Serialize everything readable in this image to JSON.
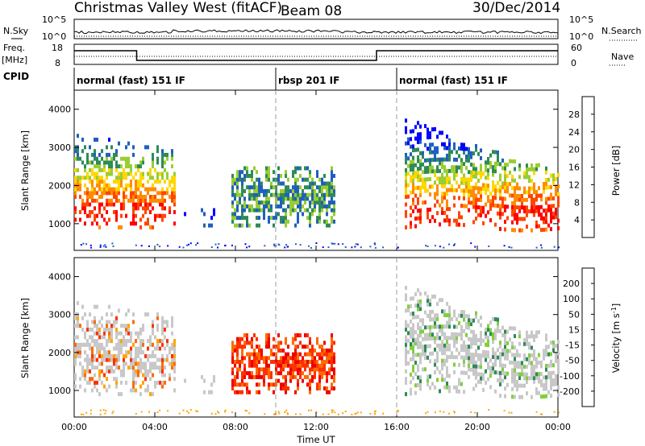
{
  "header": {
    "station": "Christmas Valley West (fitACF)",
    "beam": "Beam 08",
    "date": "30/Dec/2014"
  },
  "top_panels": {
    "nsky_label": "N.Sky",
    "nsky_scale_top": "10^5",
    "nsky_scale_bottom": "10^0",
    "nsky_right_top": "10^5",
    "nsky_right_bottom": "10^0",
    "nsearch_label": "N.Search",
    "freq_label_line1": "Freq.",
    "freq_label_line2": "[MHz]",
    "freq_left_top": "18",
    "freq_left_bottom": "8",
    "freq_right_top": "60",
    "freq_right_bottom": "0",
    "nave_label": "Nave",
    "cpid_label": "CPID",
    "modes": [
      {
        "name": "normal (fast) 151 IF",
        "start_hour": 0,
        "end_hour": 10
      },
      {
        "name": "rbsp 201 IF",
        "start_hour": 10,
        "end_hour": 16
      },
      {
        "name": "normal (fast) 151 IF",
        "start_hour": 16,
        "end_hour": 24
      }
    ]
  },
  "power_colorbar": {
    "label": "Power [dB]",
    "ticks": [
      "28",
      "24",
      "20",
      "16",
      "12",
      "8",
      "4"
    ],
    "colors": [
      "#ff0000",
      "#ff4500",
      "#ff8c00",
      "#ffd700",
      "#9acd32",
      "#2e8b57",
      "#1f5fbf",
      "#0000ff"
    ]
  },
  "velocity_colorbar": {
    "label": "Velocity [m s",
    "label_sup": "-1",
    "label_end": "]",
    "ticks": [
      "200",
      "100",
      "50",
      "15",
      "-15",
      "-50",
      "-100",
      "-200"
    ],
    "colors": [
      "#1030c0",
      "#3060a0",
      "#2e8b57",
      "#7fd03a",
      "#c8c8c8",
      "#ffa500",
      "#ff6a00",
      "#ff3000",
      "#ee0000"
    ]
  },
  "chart_data": [
    {
      "type": "heatmap",
      "title": "",
      "ylabel": "Slant Range [km]",
      "xlabel": "",
      "y_ticks": [
        "1000",
        "2000",
        "3000",
        "4000"
      ],
      "ylim": [
        300,
        4500
      ],
      "xlim_hours": [
        0,
        24
      ],
      "colorbar": "Power [dB]",
      "echo_regions": [
        {
          "x": [
            0,
            5
          ],
          "y": [
            800,
            3500
          ],
          "dominant_power_db": "8-28, strongest near 1000-1500 km"
        },
        {
          "x": [
            5,
            7
          ],
          "y": [
            900,
            1400
          ],
          "dominant_power_db": "4-8"
        },
        {
          "x": [
            7.8,
            12.8
          ],
          "y": [
            900,
            2500
          ],
          "dominant_power_db": "8-16"
        },
        {
          "x": [
            16.5,
            24
          ],
          "y": [
            800,
            3700
          ],
          "dominant_power_db": "8-28, strongest near 1000-1500 km"
        }
      ]
    },
    {
      "type": "heatmap",
      "title": "",
      "ylabel": "Slant Range [km]",
      "xlabel": "Time UT",
      "y_ticks": [
        "1000",
        "2000",
        "3000",
        "4000"
      ],
      "ylim": [
        300,
        4500
      ],
      "xlim_hours": [
        0,
        24
      ],
      "x_ticks": [
        "00:00",
        "04:00",
        "08:00",
        "12:00",
        "16:00",
        "20:00",
        "00:00"
      ],
      "colorbar": "Velocity [m s-1]",
      "echo_regions": [
        {
          "x": [
            0,
            5
          ],
          "y": [
            800,
            3500
          ],
          "dominant_velocity": "-15 to 15 (grey), some -50 to -200"
        },
        {
          "x": [
            7.8,
            12.8
          ],
          "y": [
            900,
            2500
          ],
          "dominant_velocity": "-100 to -200 (red/orange)"
        },
        {
          "x": [
            16.5,
            24
          ],
          "y": [
            800,
            3700
          ],
          "dominant_velocity": "-15 to 15 (grey), some 15 to 50"
        }
      ]
    }
  ]
}
